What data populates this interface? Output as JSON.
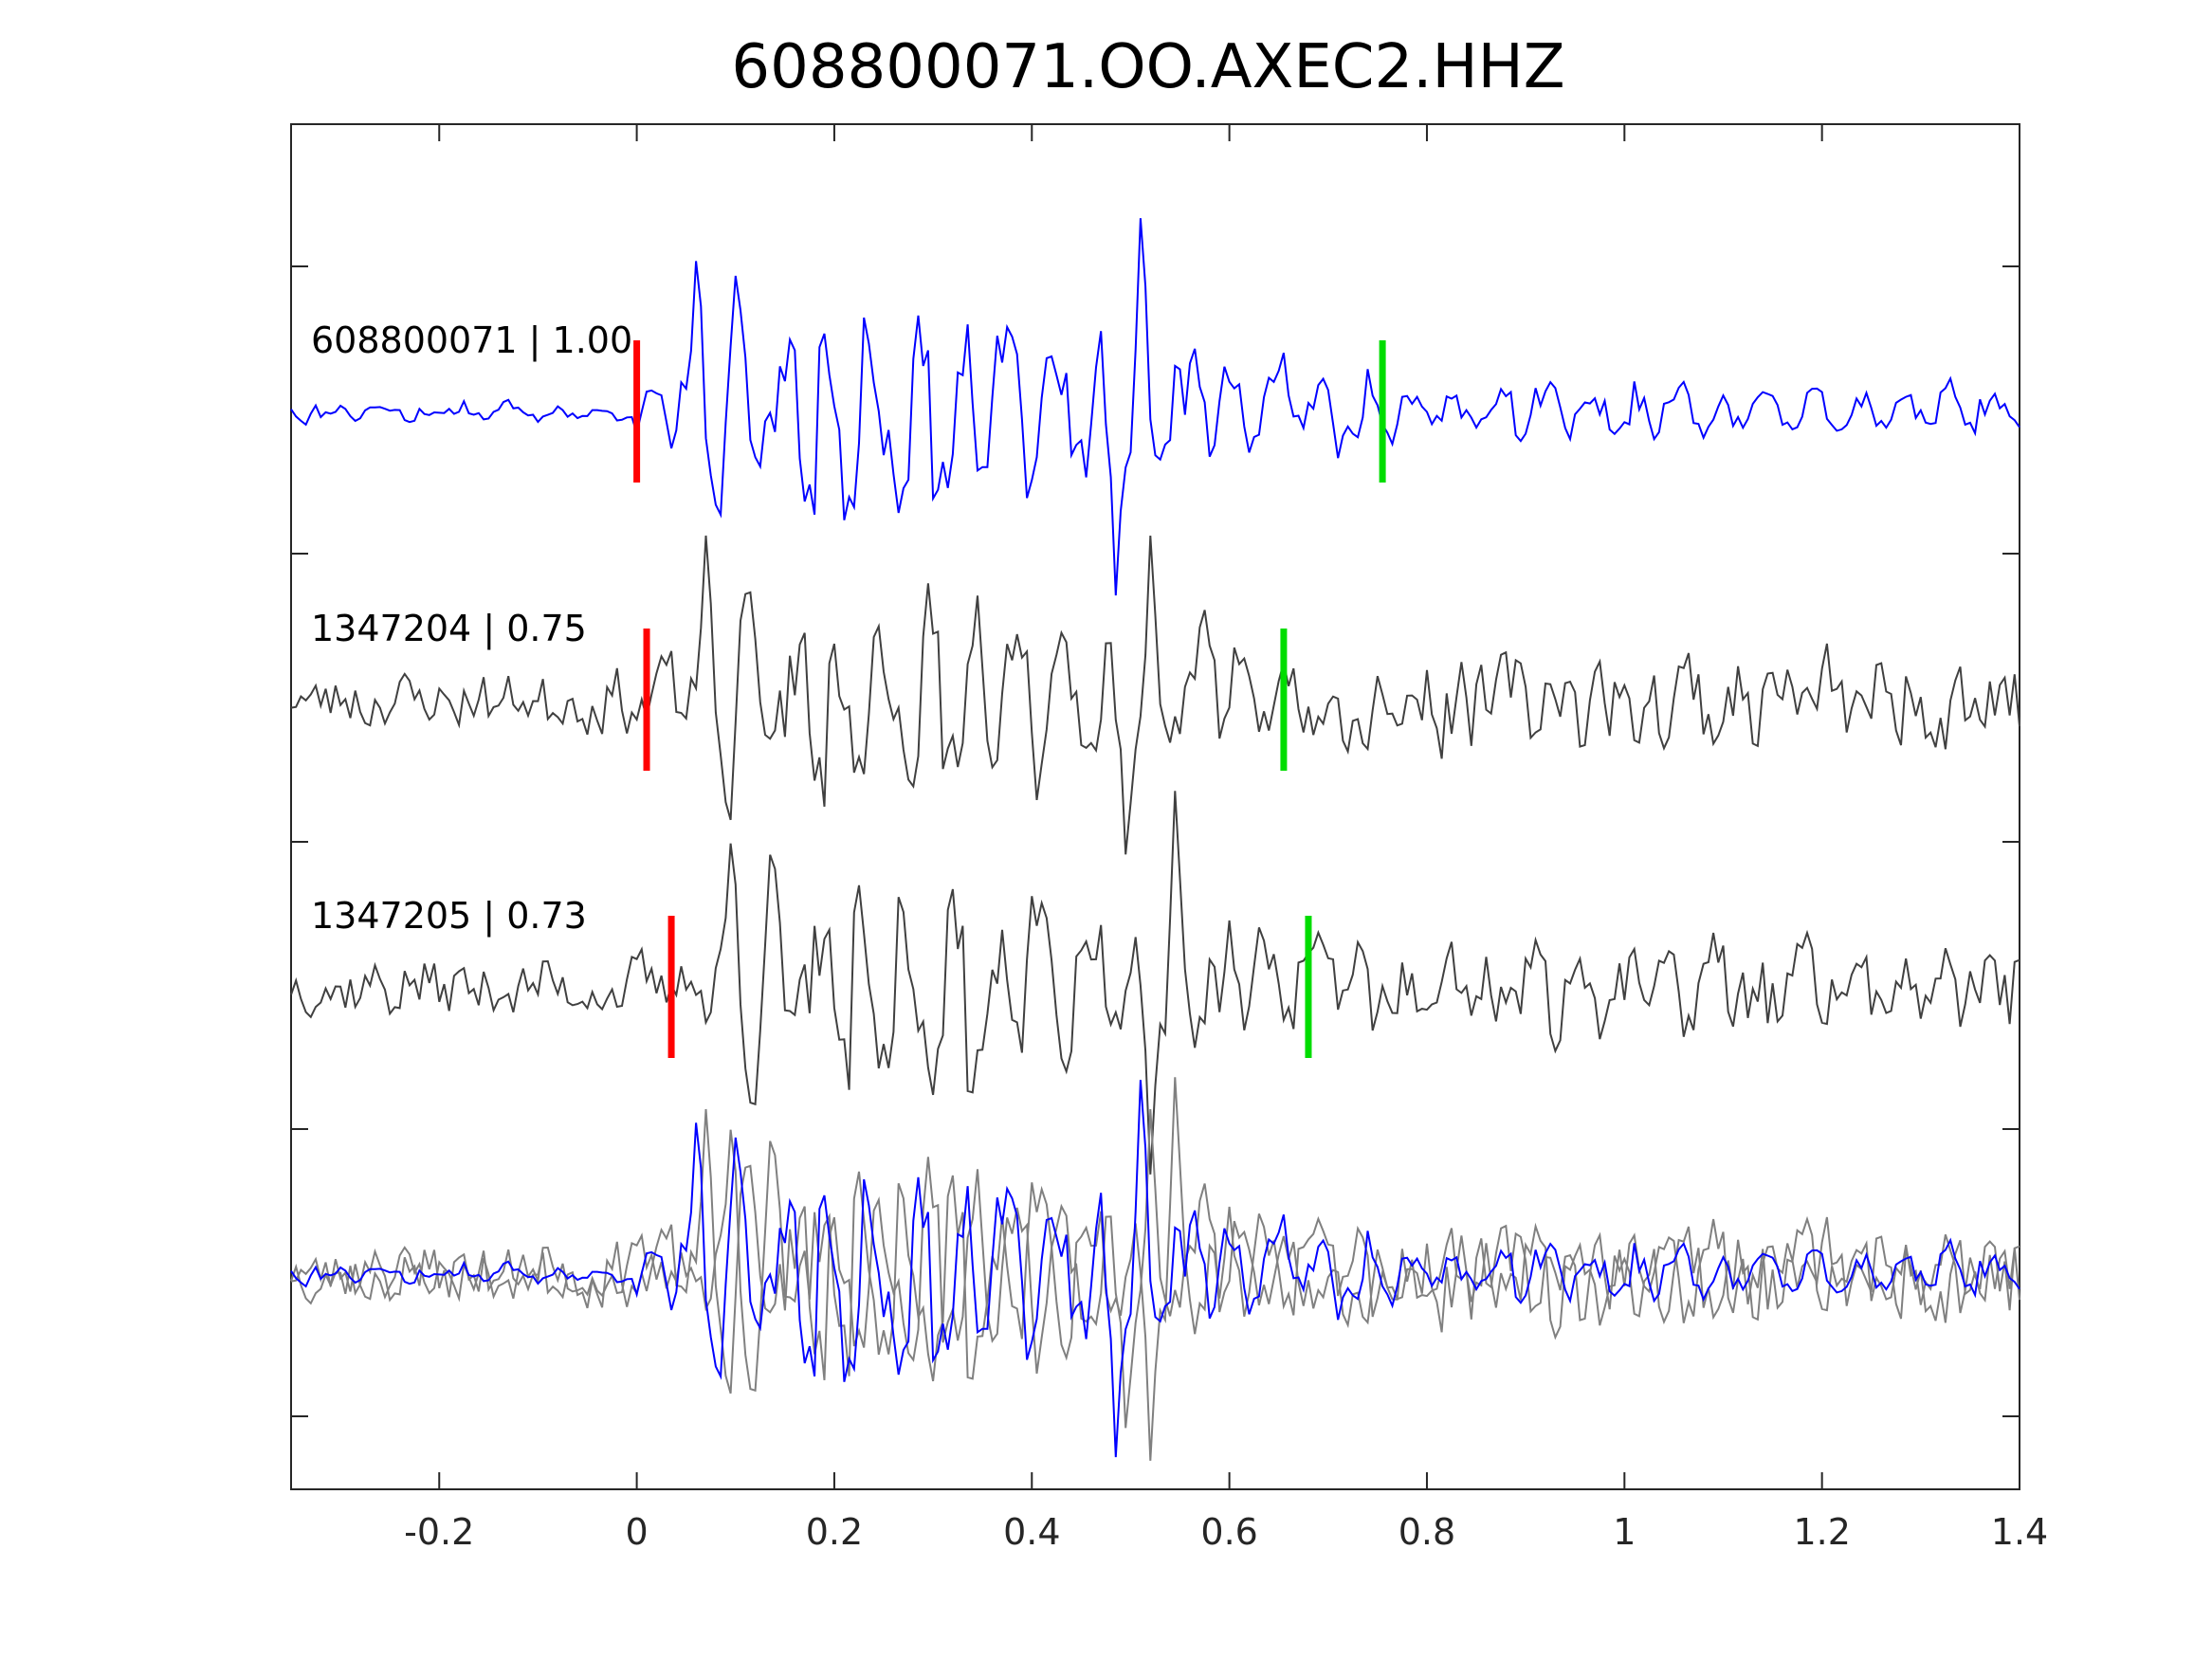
{
  "chart_data": {
    "type": "line",
    "title": "608800071.OO.AXEC2.HHZ",
    "xlabel": "",
    "ylabel": "",
    "xlim": [
      -0.35,
      1.4
    ],
    "x_ticks": [
      "-0.2",
      "0",
      "0.2",
      "0.4",
      "0.6",
      "0.8",
      "1",
      "1.2",
      "1.4"
    ],
    "x_tick_values": [
      -0.2,
      0,
      0.2,
      0.4,
      0.6,
      0.8,
      1.0,
      1.2,
      1.4
    ],
    "y_ticks_labeled": false,
    "grid": false,
    "colors": {
      "reference": "#0000ff",
      "match": "#404040",
      "overlay_match": "#808080",
      "p_pick": "#ff0000",
      "s_pick": "#00dd00",
      "axes": "#262626"
    },
    "traces": [
      {
        "label": "608800071 | 1.00",
        "id": "608800071",
        "cc": 1.0,
        "color": "reference",
        "p_pick": 0.0,
        "s_pick": 0.755,
        "seed": 11,
        "shift": 0.0
      },
      {
        "label": "1347204 | 0.75",
        "id": "1347204",
        "cc": 0.75,
        "color": "match",
        "p_pick": 0.01,
        "s_pick": 0.655,
        "seed": 23,
        "shift": 0.01
      },
      {
        "label": "1347205 | 0.73",
        "id": "1347205",
        "cc": 0.73,
        "color": "match",
        "p_pick": 0.035,
        "s_pick": 0.68,
        "seed": 37,
        "shift": 0.035
      }
    ],
    "overlay": {
      "description_visible": false,
      "members": [
        "1347204",
        "1347205",
        "608800071"
      ]
    },
    "sample_rate_hz": 200
  }
}
